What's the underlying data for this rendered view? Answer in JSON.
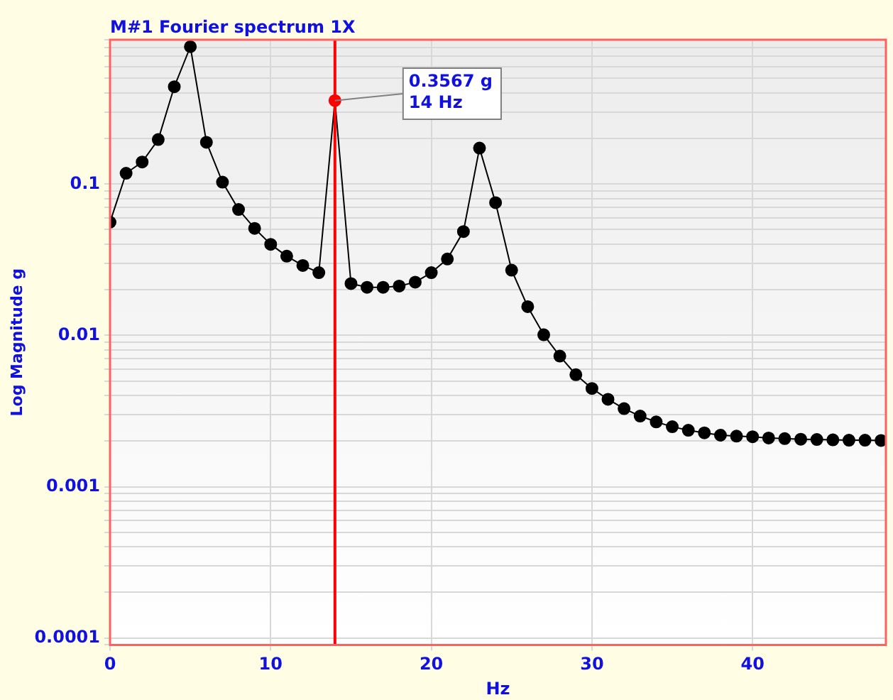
{
  "chart_data": {
    "type": "line",
    "title": "M#1 Fourier spectrum 1X",
    "xlabel": "Hz",
    "ylabel": "Log Magnitude g",
    "x": [
      0,
      1,
      2,
      3,
      4,
      5,
      6,
      7,
      8,
      9,
      10,
      11,
      12,
      13,
      14,
      15,
      16,
      17,
      18,
      19,
      20,
      21,
      22,
      23,
      24,
      25,
      26,
      27,
      28,
      29,
      30,
      31,
      32,
      33,
      34,
      35,
      36,
      37,
      38,
      39,
      40,
      41,
      42,
      43,
      44,
      45,
      46,
      47,
      48
    ],
    "series": [
      {
        "color": "#000000",
        "colors": [
          "#000000",
          "#000000",
          "#000000",
          "#000000",
          "#000000",
          "#000000",
          "#000000",
          "#000000",
          "#000000",
          "#000000",
          "#000000",
          "#000000",
          "#000000",
          "#000000",
          "#ff0000",
          "#000000",
          "#000000",
          "#000000",
          "#000000",
          "#000000",
          "#000000",
          "#000000",
          "#000000",
          "#000000",
          "#000000",
          "#000000",
          "#000000",
          "#000000",
          "#000000",
          "#000000",
          "#000000",
          "#000000",
          "#000000",
          "#000000",
          "#000000",
          "#000000",
          "#000000",
          "#000000",
          "#000000",
          "#000000",
          "#000000",
          "#000000",
          "#000000",
          "#000000",
          "#000000",
          "#000000",
          "#000000",
          "#000000",
          "#000000"
        ],
        "values": [
          0.056,
          0.118,
          0.14,
          0.197,
          0.44,
          0.81,
          0.189,
          0.103,
          0.068,
          0.051,
          0.04,
          0.0334,
          0.029,
          0.026,
          0.3567,
          0.022,
          0.0208,
          0.0208,
          0.0212,
          0.0225,
          0.026,
          0.032,
          0.0486,
          0.173,
          0.0754,
          0.027,
          0.0155,
          0.0101,
          0.0073,
          0.0055,
          0.00446,
          0.00378,
          0.00328,
          0.00293,
          0.00268,
          0.00249,
          0.00236,
          0.00227,
          0.00219,
          0.00216,
          0.00214,
          0.0021,
          0.00208,
          0.00206,
          0.00205,
          0.00204,
          0.00203,
          0.00203,
          0.00202
        ]
      }
    ],
    "xlim": [
      0,
      48.3
    ],
    "xticks": [
      0,
      10,
      20,
      30,
      40
    ],
    "ylim": [
      9e-05,
      0.9
    ],
    "yticks": [
      0.0001,
      0.001,
      0.01,
      0.1
    ],
    "log": "y",
    "grid": true,
    "legend": false,
    "marker": "circle",
    "line_style": "solid",
    "ref_lines": [
      {
        "axis": "x",
        "value": 14,
        "color": "#ff0000"
      }
    ],
    "annotations": [
      {
        "text": "0.3567 g\n14 Hz",
        "x": 14,
        "y": 0.3567
      }
    ]
  }
}
